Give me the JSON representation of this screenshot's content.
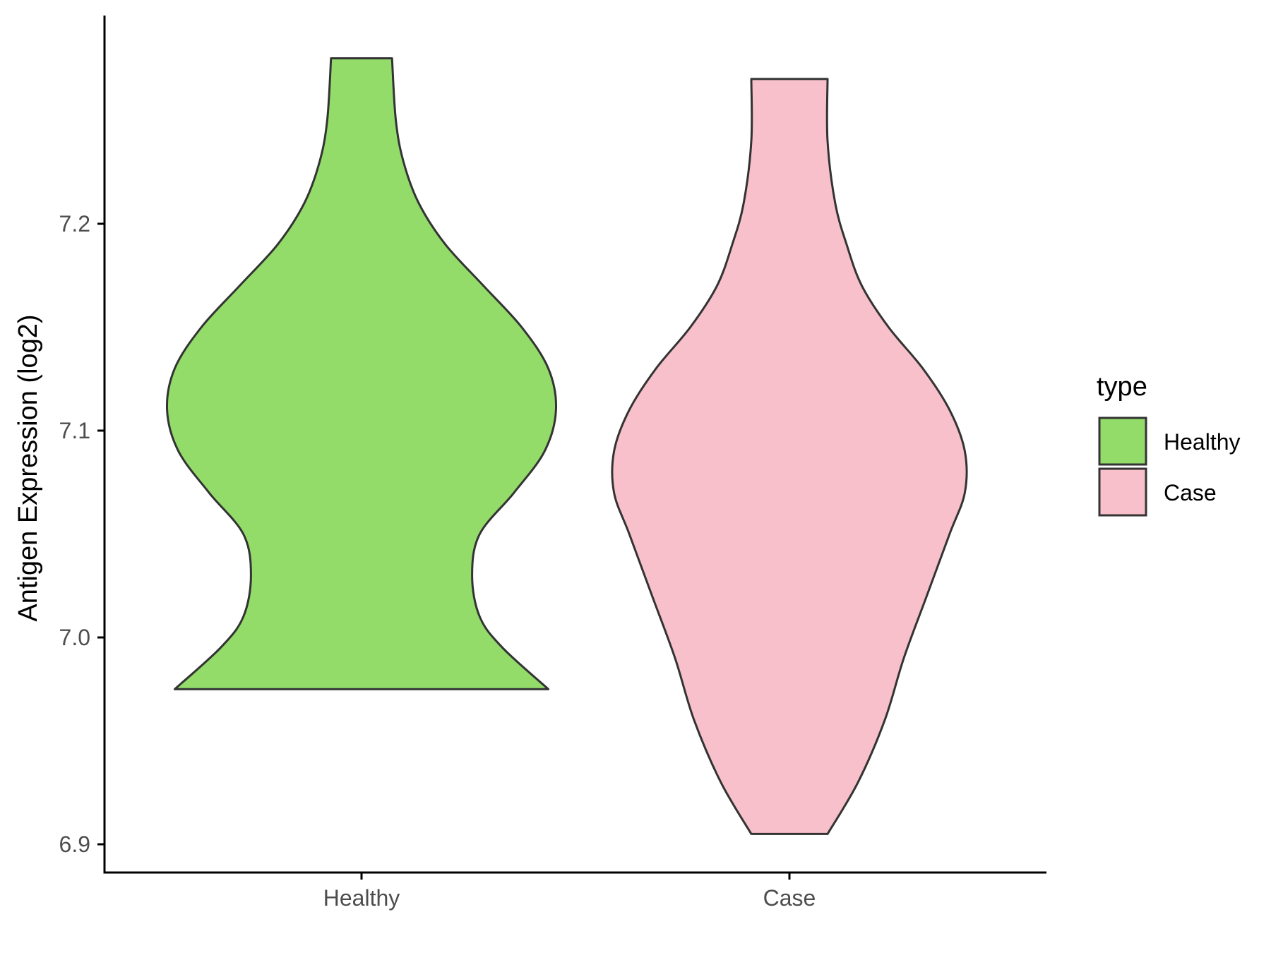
{
  "chart_data": {
    "type": "violin",
    "title": "",
    "xlabel": "",
    "ylabel": "Antigen Expression (log2)",
    "ylim": [
      6.885,
      7.31
    ],
    "yticks": [
      "6.9",
      "7.0",
      "7.1",
      "7.2"
    ],
    "categories": [
      "Healthy",
      "Case"
    ],
    "legend": {
      "title": "type",
      "position": "right",
      "items": [
        {
          "label": "Healthy",
          "color": "#93DC6A"
        },
        {
          "label": "Case",
          "color": "#F7C0CB"
        }
      ]
    },
    "series": [
      {
        "category": "Healthy",
        "color": "#93DC6A",
        "min": 6.975,
        "max": 7.28,
        "density_profile": [
          [
            6.975,
            0.49
          ],
          [
            6.995,
            0.37
          ],
          [
            7.01,
            0.31
          ],
          [
            7.03,
            0.29
          ],
          [
            7.05,
            0.31
          ],
          [
            7.07,
            0.4
          ],
          [
            7.09,
            0.48
          ],
          [
            7.11,
            0.51
          ],
          [
            7.13,
            0.49
          ],
          [
            7.15,
            0.42
          ],
          [
            7.17,
            0.32
          ],
          [
            7.19,
            0.22
          ],
          [
            7.21,
            0.15
          ],
          [
            7.23,
            0.11
          ],
          [
            7.25,
            0.09
          ],
          [
            7.28,
            0.08
          ]
        ]
      },
      {
        "category": "Case",
        "color": "#F7C0CB",
        "min": 6.905,
        "max": 7.27,
        "density_profile": [
          [
            6.905,
            0.1
          ],
          [
            6.93,
            0.18
          ],
          [
            6.96,
            0.25
          ],
          [
            6.99,
            0.3
          ],
          [
            7.02,
            0.36
          ],
          [
            7.05,
            0.42
          ],
          [
            7.07,
            0.46
          ],
          [
            7.09,
            0.46
          ],
          [
            7.11,
            0.42
          ],
          [
            7.13,
            0.35
          ],
          [
            7.15,
            0.26
          ],
          [
            7.17,
            0.19
          ],
          [
            7.19,
            0.15
          ],
          [
            7.21,
            0.12
          ],
          [
            7.24,
            0.1
          ],
          [
            7.27,
            0.1
          ]
        ]
      }
    ]
  }
}
